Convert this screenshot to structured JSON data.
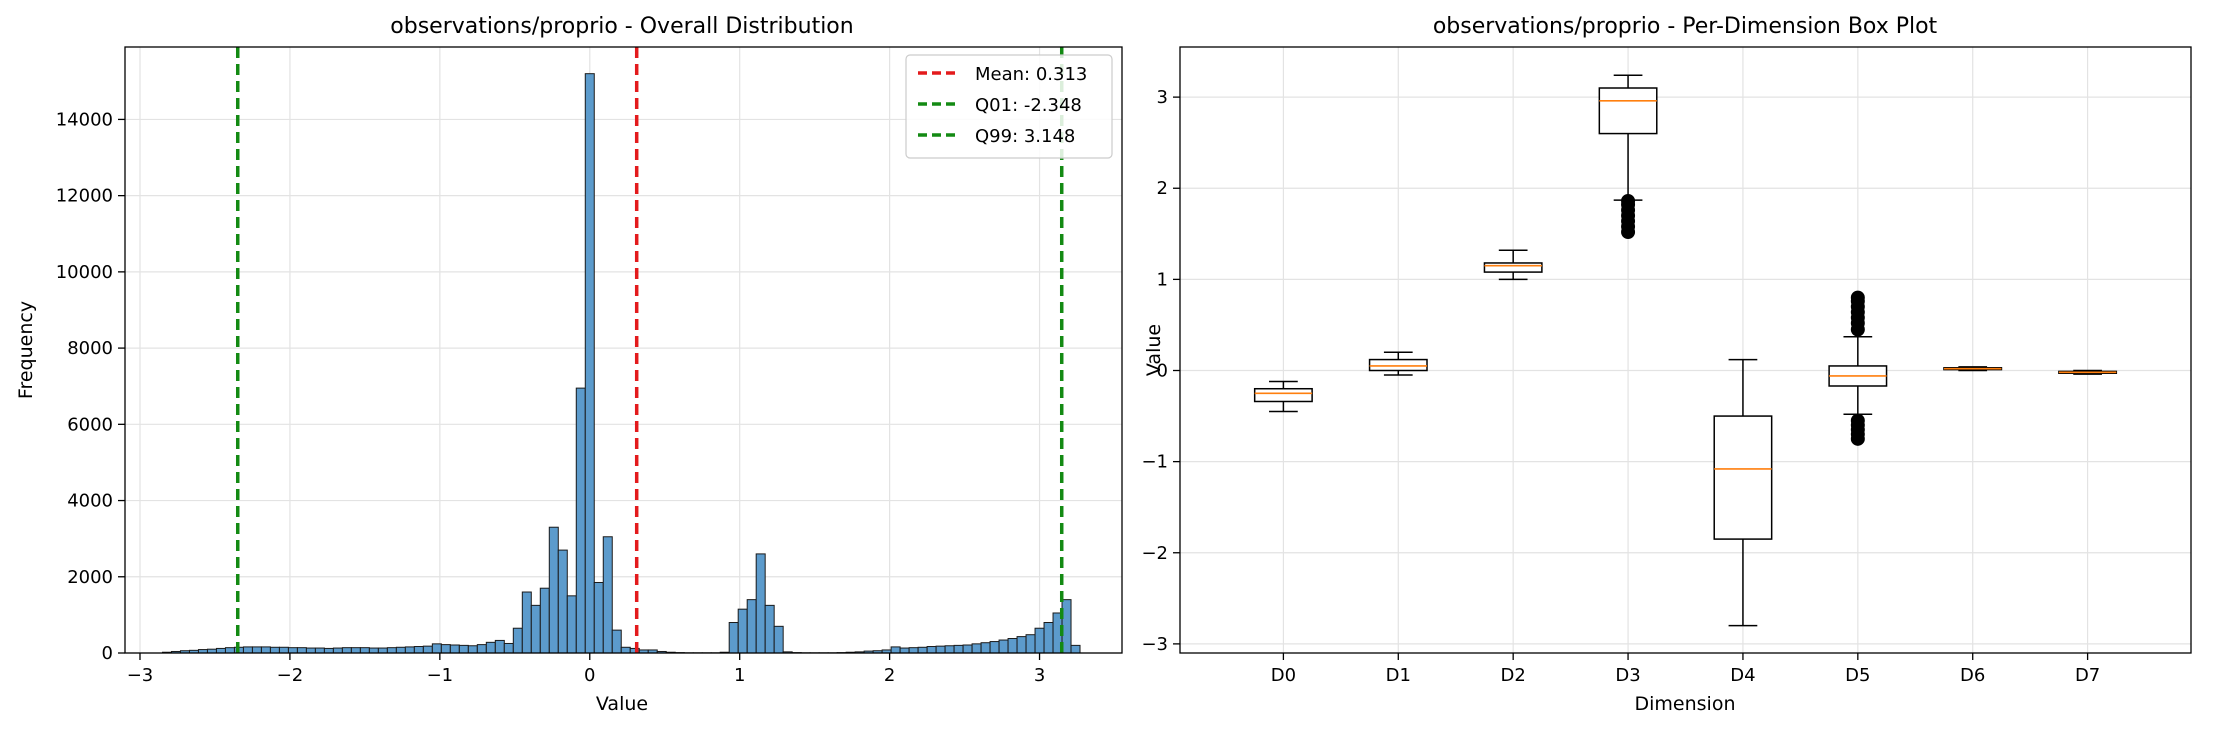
{
  "chart_data": [
    {
      "type": "bar",
      "title": "observations/proprio - Overall Distribution",
      "xlabel": "Value",
      "ylabel": "Frequency",
      "xlim": [
        -3.1,
        3.55
      ],
      "ylim": [
        0,
        15900
      ],
      "xticks": [
        -3,
        -2,
        -1,
        0,
        1,
        2,
        3
      ],
      "xtick_labels": [
        "−3",
        "−2",
        "−1",
        "0",
        "1",
        "2",
        "3"
      ],
      "yticks": [
        0,
        2000,
        4000,
        6000,
        8000,
        10000,
        12000,
        14000
      ],
      "ytick_labels": [
        "0",
        "2000",
        "4000",
        "6000",
        "8000",
        "10000",
        "12000",
        "14000"
      ],
      "grid": true,
      "legend_placement": "top-right",
      "bar_color": "#5c9bcc",
      "bin_width": 0.06,
      "bins": [
        [
          -2.82,
          20
        ],
        [
          -2.76,
          40
        ],
        [
          -2.7,
          60
        ],
        [
          -2.64,
          70
        ],
        [
          -2.58,
          90
        ],
        [
          -2.52,
          100
        ],
        [
          -2.46,
          120
        ],
        [
          -2.4,
          140
        ],
        [
          -2.34,
          150
        ],
        [
          -2.28,
          160
        ],
        [
          -2.22,
          160
        ],
        [
          -2.16,
          160
        ],
        [
          -2.1,
          150
        ],
        [
          -2.04,
          150
        ],
        [
          -1.98,
          140
        ],
        [
          -1.92,
          140
        ],
        [
          -1.86,
          130
        ],
        [
          -1.8,
          130
        ],
        [
          -1.74,
          120
        ],
        [
          -1.68,
          130
        ],
        [
          -1.62,
          140
        ],
        [
          -1.56,
          140
        ],
        [
          -1.5,
          140
        ],
        [
          -1.44,
          130
        ],
        [
          -1.38,
          130
        ],
        [
          -1.32,
          140
        ],
        [
          -1.26,
          150
        ],
        [
          -1.2,
          160
        ],
        [
          -1.14,
          170
        ],
        [
          -1.08,
          180
        ],
        [
          -1.02,
          240
        ],
        [
          -0.96,
          220
        ],
        [
          -0.9,
          210
        ],
        [
          -0.84,
          200
        ],
        [
          -0.78,
          190
        ],
        [
          -0.72,
          220
        ],
        [
          -0.66,
          280
        ],
        [
          -0.6,
          330
        ],
        [
          -0.54,
          250
        ],
        [
          -0.48,
          650
        ],
        [
          -0.42,
          1600
        ],
        [
          -0.36,
          1250
        ],
        [
          -0.3,
          1700
        ],
        [
          -0.24,
          3300
        ],
        [
          -0.18,
          2700
        ],
        [
          -0.12,
          1500
        ],
        [
          -0.06,
          6950
        ],
        [
          0.0,
          15200
        ],
        [
          0.06,
          1850
        ],
        [
          0.12,
          3050
        ],
        [
          0.18,
          600
        ],
        [
          0.24,
          150
        ],
        [
          0.3,
          120
        ],
        [
          0.36,
          80
        ],
        [
          0.42,
          80
        ],
        [
          0.48,
          40
        ],
        [
          0.54,
          20
        ],
        [
          0.6,
          10
        ],
        [
          0.66,
          5
        ],
        [
          0.72,
          5
        ],
        [
          0.78,
          5
        ],
        [
          0.84,
          5
        ],
        [
          0.9,
          20
        ],
        [
          0.96,
          800
        ],
        [
          1.02,
          1150
        ],
        [
          1.08,
          1400
        ],
        [
          1.14,
          2600
        ],
        [
          1.2,
          1250
        ],
        [
          1.26,
          700
        ],
        [
          1.32,
          30
        ],
        [
          1.38,
          10
        ],
        [
          1.44,
          5
        ],
        [
          1.5,
          5
        ],
        [
          1.56,
          5
        ],
        [
          1.62,
          5
        ],
        [
          1.68,
          10
        ],
        [
          1.74,
          20
        ],
        [
          1.8,
          30
        ],
        [
          1.86,
          50
        ],
        [
          1.92,
          60
        ],
        [
          1.98,
          80
        ],
        [
          2.04,
          160
        ],
        [
          2.1,
          130
        ],
        [
          2.16,
          140
        ],
        [
          2.22,
          150
        ],
        [
          2.28,
          170
        ],
        [
          2.34,
          180
        ],
        [
          2.4,
          190
        ],
        [
          2.46,
          200
        ],
        [
          2.52,
          210
        ],
        [
          2.58,
          240
        ],
        [
          2.64,
          270
        ],
        [
          2.7,
          300
        ],
        [
          2.76,
          340
        ],
        [
          2.82,
          380
        ],
        [
          2.88,
          430
        ],
        [
          2.94,
          480
        ],
        [
          3.0,
          650
        ],
        [
          3.06,
          800
        ],
        [
          3.12,
          1050
        ],
        [
          3.18,
          1400
        ],
        [
          3.24,
          200
        ]
      ],
      "vlines": [
        {
          "name": "Mean: 0.313",
          "x": 0.313,
          "color": "#e31a1c"
        },
        {
          "name": "Q01: -2.348",
          "x": -2.348,
          "color": "#138a13"
        },
        {
          "name": "Q99: 3.148",
          "x": 3.148,
          "color": "#138a13"
        }
      ]
    },
    {
      "type": "box",
      "title": "observations/proprio - Per-Dimension Box Plot",
      "xlabel": "Dimension",
      "ylabel": "Value",
      "ylim": [
        -3.1,
        3.55
      ],
      "yticks": [
        -3,
        -2,
        -1,
        0,
        1,
        2,
        3
      ],
      "ytick_labels": [
        "−3",
        "−2",
        "−1",
        "0",
        "1",
        "2",
        "3"
      ],
      "grid": true,
      "median_color": "#ff7f0e",
      "boxes": [
        {
          "name": "D0",
          "whislo": -0.45,
          "q1": -0.34,
          "med": -0.25,
          "q3": -0.2,
          "whishi": -0.12,
          "fliers": []
        },
        {
          "name": "D1",
          "whislo": -0.05,
          "q1": 0.0,
          "med": 0.05,
          "q3": 0.12,
          "whishi": 0.2,
          "fliers": []
        },
        {
          "name": "D2",
          "whislo": 1.0,
          "q1": 1.08,
          "med": 1.15,
          "q3": 1.18,
          "whishi": 1.32,
          "fliers": []
        },
        {
          "name": "D3",
          "whislo": 1.87,
          "q1": 2.6,
          "med": 2.96,
          "q3": 3.1,
          "whishi": 3.24,
          "fliers": [
            1.52,
            1.58,
            1.64,
            1.7,
            1.76,
            1.82,
            1.86
          ]
        },
        {
          "name": "D4",
          "whislo": -2.8,
          "q1": -1.85,
          "med": -1.08,
          "q3": -0.5,
          "whishi": 0.12,
          "fliers": []
        },
        {
          "name": "D5",
          "whislo": -0.48,
          "q1": -0.17,
          "med": -0.06,
          "q3": 0.05,
          "whishi": 0.37,
          "fliers": [
            -0.75,
            -0.7,
            -0.65,
            -0.6,
            -0.55,
            0.45,
            0.52,
            0.58,
            0.64,
            0.7,
            0.76,
            0.8
          ]
        },
        {
          "name": "D6",
          "whislo": 0.0,
          "q1": 0.01,
          "med": 0.02,
          "q3": 0.03,
          "whishi": 0.04,
          "fliers": []
        },
        {
          "name": "D7",
          "whislo": -0.04,
          "q1": -0.03,
          "med": -0.02,
          "q3": -0.01,
          "whishi": 0.0,
          "fliers": []
        }
      ]
    }
  ]
}
